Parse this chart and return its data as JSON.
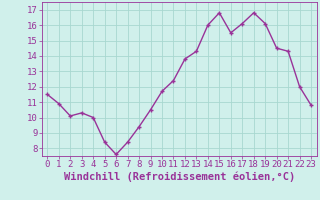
{
  "x": [
    0,
    1,
    2,
    3,
    4,
    5,
    6,
    7,
    8,
    9,
    10,
    11,
    12,
    13,
    14,
    15,
    16,
    17,
    18,
    19,
    20,
    21,
    22,
    23
  ],
  "y": [
    11.5,
    10.9,
    10.1,
    10.3,
    10.0,
    8.4,
    7.6,
    8.4,
    9.4,
    10.5,
    11.7,
    12.4,
    13.8,
    14.3,
    16.0,
    16.8,
    15.5,
    16.1,
    16.8,
    16.1,
    14.5,
    14.3,
    12.0,
    10.8
  ],
  "line_color": "#993399",
  "marker": "+",
  "marker_size": 3,
  "bg_color": "#d0f0eb",
  "grid_color": "#a8d8d0",
  "xlabel": "Windchill (Refroidissement éolien,°C)",
  "xlim": [
    -0.5,
    23.5
  ],
  "ylim": [
    7.5,
    17.5
  ],
  "yticks": [
    8,
    9,
    10,
    11,
    12,
    13,
    14,
    15,
    16,
    17
  ],
  "xticks": [
    0,
    1,
    2,
    3,
    4,
    5,
    6,
    7,
    8,
    9,
    10,
    11,
    12,
    13,
    14,
    15,
    16,
    17,
    18,
    19,
    20,
    21,
    22,
    23
  ],
  "tick_label_fontsize": 6.5,
  "xlabel_fontsize": 7.5,
  "line_width": 1.0
}
